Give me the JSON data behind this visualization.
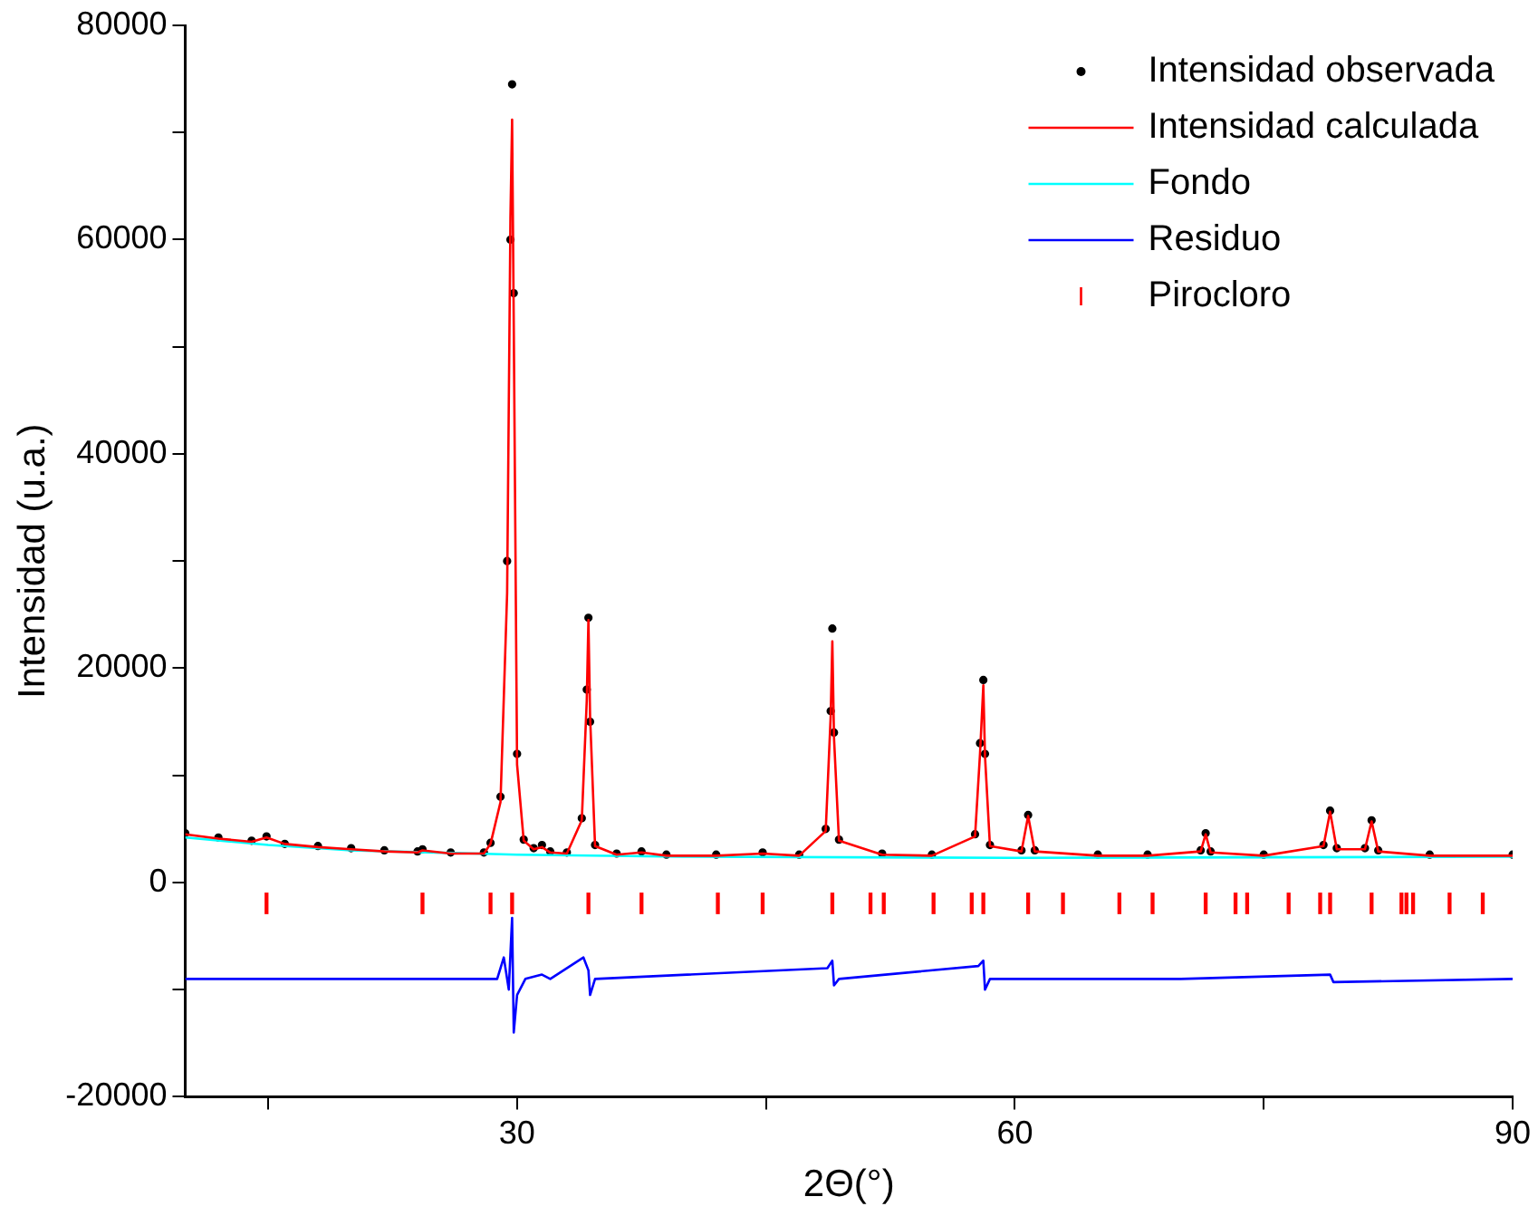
{
  "chart_data": {
    "type": "scatter",
    "xlabel": "2Θ(°)",
    "ylabel": "Intensidad (u.a.)",
    "xlim": [
      10,
      90
    ],
    "xticks": [
      {
        "value": 15,
        "label": null
      },
      30,
      {
        "value": 45,
        "label": null
      },
      60,
      {
        "value": 75,
        "label": null
      },
      90
    ],
    "ylim": [
      -20000,
      80000
    ],
    "yticks": [
      -20000,
      {
        "value": -10000,
        "label": null
      },
      0,
      {
        "value": 10000,
        "label": null
      },
      20000,
      {
        "value": 30000,
        "label": null
      },
      40000,
      {
        "value": 50000,
        "label": null
      },
      60000,
      {
        "value": 70000,
        "label": null
      },
      80000
    ],
    "grid": false,
    "legend": "top right",
    "series": [
      {
        "name": "Intensidad observada",
        "marker": "circle",
        "color": "#000000",
        "x": [
          10,
          12,
          14,
          14.9,
          16,
          18,
          20,
          22,
          24,
          24.3,
          26,
          28,
          28.4,
          29.0,
          29.4,
          29.6,
          29.7,
          29.8,
          30.0,
          30.4,
          31,
          31.5,
          32,
          33,
          33.9,
          34.2,
          34.3,
          34.4,
          34.7,
          36,
          37.5,
          39,
          42,
          44.8,
          47,
          48.6,
          48.9,
          49.0,
          49.1,
          49.4,
          52,
          55,
          57.6,
          57.9,
          58.1,
          58.2,
          58.5,
          60.4,
          60.8,
          61.2,
          65,
          68,
          71.2,
          71.5,
          71.8,
          75,
          78.6,
          79.0,
          79.4,
          81.1,
          81.5,
          81.9,
          85,
          90
        ],
        "values": [
          4600,
          4200,
          3900,
          4300,
          3600,
          3400,
          3200,
          3000,
          2900,
          3100,
          2800,
          2800,
          3700,
          8000,
          30000,
          60000,
          74500,
          55000,
          12000,
          4000,
          3200,
          3500,
          2900,
          2800,
          6000,
          18000,
          24700,
          15000,
          3500,
          2700,
          2900,
          2600,
          2600,
          2800,
          2600,
          5000,
          16000,
          23700,
          14000,
          4000,
          2700,
          2600,
          4500,
          13000,
          18900,
          12000,
          3500,
          3000,
          6300,
          3000,
          2600,
          2600,
          3000,
          4600,
          2900,
          2600,
          3500,
          6700,
          3200,
          3200,
          5800,
          3000,
          2600,
          2600
        ]
      },
      {
        "name": "Intensidad calculada",
        "type": "line",
        "marker": "none",
        "color": "#ff0000",
        "x": [
          10,
          12,
          14,
          14.9,
          16,
          18,
          20,
          22,
          24,
          24.3,
          26,
          28,
          28.4,
          29.0,
          29.4,
          29.6,
          29.7,
          29.8,
          30.0,
          30.4,
          31,
          31.5,
          32,
          33,
          33.9,
          34.2,
          34.3,
          34.4,
          34.7,
          36,
          37.5,
          39,
          42,
          44.8,
          47,
          48.6,
          48.9,
          49.0,
          49.1,
          49.4,
          52,
          55,
          57.6,
          57.9,
          58.1,
          58.2,
          58.5,
          60.4,
          60.8,
          61.2,
          65,
          68,
          71.2,
          71.5,
          71.8,
          75,
          78.6,
          79.0,
          79.4,
          81.1,
          81.5,
          81.9,
          85,
          90
        ],
        "values": [
          4500,
          4100,
          3800,
          4200,
          3600,
          3300,
          3100,
          2900,
          2800,
          3000,
          2700,
          2700,
          3600,
          7500,
          27000,
          62000,
          71200,
          52000,
          11000,
          3900,
          3100,
          3300,
          2800,
          2700,
          5800,
          17000,
          24500,
          15500,
          3400,
          2600,
          2800,
          2500,
          2500,
          2700,
          2500,
          4800,
          15500,
          22500,
          13500,
          3900,
          2600,
          2500,
          4300,
          12000,
          18400,
          11800,
          3400,
          2900,
          6200,
          2900,
          2500,
          2500,
          2900,
          4500,
          2800,
          2500,
          3400,
          6600,
          3100,
          3100,
          5700,
          2900,
          2500,
          2500
        ]
      },
      {
        "name": "Fondo",
        "type": "line",
        "marker": "none",
        "color": "#00ffff",
        "x": [
          10,
          15,
          20,
          30,
          40,
          60,
          90
        ],
        "values": [
          4200,
          3500,
          3000,
          2600,
          2400,
          2300,
          2400
        ]
      },
      {
        "name": "Residuo",
        "type": "line",
        "marker": "none",
        "color": "#0000ff",
        "x": [
          10,
          20,
          28.8,
          29.2,
          29.5,
          29.7,
          29.8,
          30.0,
          30.5,
          31.5,
          32,
          34.0,
          34.3,
          34.4,
          34.7,
          48.7,
          49.0,
          49.1,
          49.4,
          57.8,
          58.1,
          58.2,
          58.5,
          70,
          79.0,
          79.2,
          90
        ],
        "values": [
          -9000,
          -9000,
          -9000,
          -7000,
          -10000,
          -3300,
          -14000,
          -10500,
          -9000,
          -8600,
          -9000,
          -7000,
          -8200,
          -10500,
          -9000,
          -8000,
          -7300,
          -9600,
          -9000,
          -7800,
          -7300,
          -10000,
          -9000,
          -9000,
          -8600,
          -9300,
          -9000
        ]
      },
      {
        "name": "Pirocloro",
        "type": "bar",
        "color": "#ff0000",
        "x": [
          14.9,
          24.3,
          28.4,
          29.7,
          34.3,
          37.5,
          42.1,
          44.8,
          49.0,
          51.3,
          52.1,
          55.1,
          57.4,
          58.1,
          60.8,
          62.9,
          66.3,
          68.3,
          71.5,
          73.3,
          74.0,
          76.5,
          78.4,
          79.0,
          81.5,
          83.3,
          83.6,
          84.0,
          86.2,
          88.2
        ],
        "base": [
          -2900,
          -2900,
          -2900,
          -2900,
          -2900,
          -2900,
          -2900,
          -2900,
          -2900,
          -2900,
          -2900,
          -2900,
          -2900,
          -2900,
          -2900,
          -2900,
          -2900,
          -2900,
          -2900,
          -2900,
          -2900,
          -2900,
          -2900,
          -2900,
          -2900,
          -2900,
          -2900,
          -2900,
          -2900,
          -2900
        ],
        "values": [
          1900,
          1900,
          1900,
          1900,
          1900,
          1900,
          1900,
          1900,
          1900,
          1900,
          1900,
          1900,
          1900,
          1900,
          1900,
          1900,
          1900,
          1900,
          1900,
          1900,
          1900,
          1900,
          1900,
          1900,
          1900,
          1900,
          1900,
          1900,
          1900,
          1900
        ]
      }
    ]
  }
}
